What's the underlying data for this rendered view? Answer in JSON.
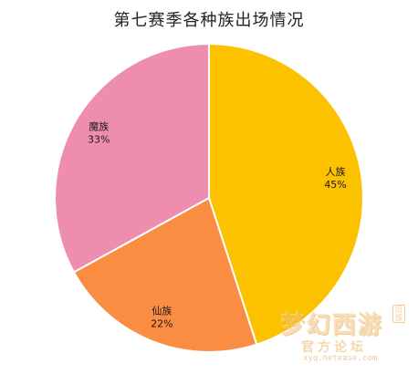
{
  "chart_data": {
    "type": "pie",
    "title": "第七赛季各种族出场情况",
    "slices": [
      {
        "label": "人族",
        "value": 45,
        "display": "45%",
        "color": "#fcc200"
      },
      {
        "label": "仙族",
        "value": 22,
        "display": "22%",
        "color": "#fb8d43"
      },
      {
        "label": "魔族",
        "value": 33,
        "display": "33%",
        "color": "#ef8db0"
      }
    ],
    "start_angle": "12 o'clock",
    "direction": "clockwise",
    "label_placement": "inside"
  },
  "watermark": {
    "main": "梦幻西游",
    "sub": "官方论坛",
    "url": "xyq.netease.com",
    "tag": "旧版"
  }
}
